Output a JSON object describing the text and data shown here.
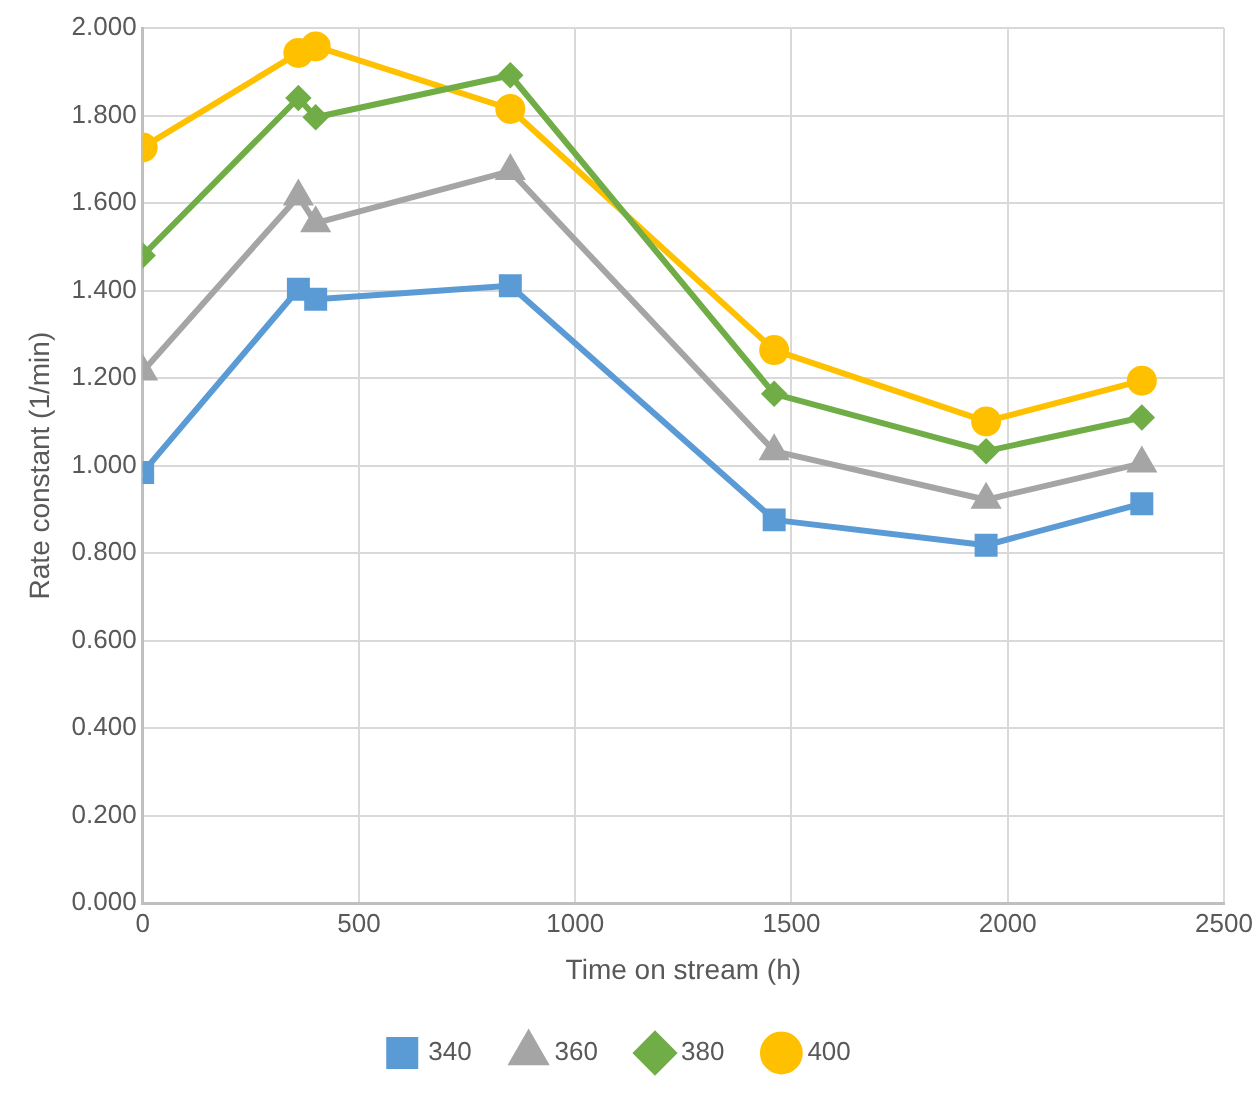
{
  "chart_data": {
    "type": "line",
    "xlabel": "Time on stream (h)",
    "ylabel": "Rate constant (1/min)",
    "x": [
      0,
      360,
      400,
      850,
      1460,
      1950,
      2310
    ],
    "series": [
      {
        "name": "340",
        "color": "#5b9bd5",
        "marker": "square",
        "values": [
          0.984,
          1.403,
          1.38,
          1.411,
          0.876,
          0.818,
          0.913
        ]
      },
      {
        "name": "360",
        "color": "#a5a5a5",
        "marker": "triangle",
        "values": [
          1.215,
          1.615,
          1.554,
          1.673,
          1.033,
          0.922,
          1.005
        ]
      },
      {
        "name": "380",
        "color": "#70ad47",
        "marker": "diamond",
        "values": [
          1.48,
          1.84,
          1.796,
          1.892,
          1.164,
          1.033,
          1.11
        ]
      },
      {
        "name": "400",
        "color": "#ffc000",
        "marker": "circle",
        "values": [
          1.727,
          1.943,
          1.958,
          1.815,
          1.264,
          1.101,
          1.194
        ]
      }
    ],
    "xlim": [
      0,
      2500
    ],
    "xticks": [
      0,
      500,
      1000,
      1500,
      2000,
      2500
    ],
    "ylim": [
      0,
      2
    ],
    "yticks": [
      {
        "value": 0,
        "label": "0.000"
      },
      {
        "value": 0.2,
        "label": "0.200"
      },
      {
        "value": 0.4,
        "label": "0.400"
      },
      {
        "value": 0.6,
        "label": "0.600"
      },
      {
        "value": 0.8,
        "label": "0.800"
      },
      {
        "value": 1,
        "label": "1.000"
      },
      {
        "value": 1.2,
        "label": "1.200"
      },
      {
        "value": 1.4,
        "label": "1.400"
      },
      {
        "value": 1.6,
        "label": "1.600"
      },
      {
        "value": 1.8,
        "label": "1.800"
      },
      {
        "value": 2,
        "label": "2.000"
      }
    ],
    "grid": true,
    "legend": "bottom"
  }
}
